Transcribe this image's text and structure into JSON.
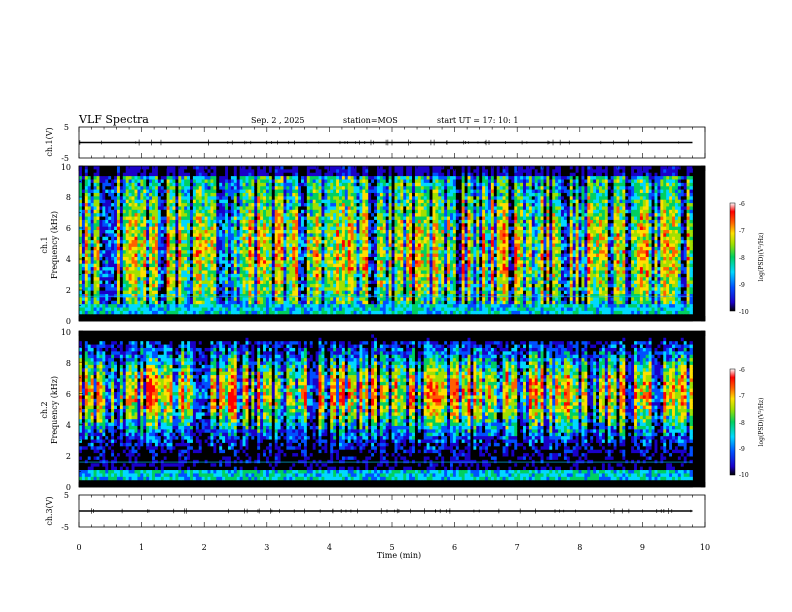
{
  "header": {
    "title": "VLF Spectra",
    "date": "Sep. 2 , 2025",
    "station": "station=MOS",
    "start": "start UT =  17: 10: 1"
  },
  "chart_data": [
    {
      "type": "line",
      "panel": "ch1-waveform",
      "ylabel": "ch.1(V)",
      "ylim": [
        -5,
        5
      ],
      "yticks": [
        "5",
        "-5"
      ],
      "xlim": [
        0,
        10
      ],
      "baseline_value": 0,
      "data_extent_min": 9.8
    },
    {
      "type": "heatmap",
      "panel": "ch1-spectrogram",
      "ylabel_top": "ch.1",
      "ylabel": "Frequency (kHz)",
      "ylim": [
        0,
        10
      ],
      "yticks": [
        "0",
        "2",
        "4",
        "6",
        "8",
        "10"
      ],
      "xlim": [
        0,
        10
      ],
      "data_extent_min": 9.8,
      "colorbar": {
        "label": "log(PSD)(V²/Hz)",
        "range": [
          -10,
          -6
        ],
        "ticks": [
          "-6",
          "-7",
          "-8",
          "-9",
          "-10"
        ]
      }
    },
    {
      "type": "heatmap",
      "panel": "ch2-spectrogram",
      "ylabel_top": "ch.2",
      "ylabel": "Frequency (kHz)",
      "ylim": [
        0,
        10
      ],
      "yticks": [
        "0",
        "2",
        "4",
        "6",
        "8",
        "10"
      ],
      "xlim": [
        0,
        10
      ],
      "data_extent_min": 9.8,
      "colorbar": {
        "label": "log(PSD)(V²/Hz)",
        "range": [
          -10,
          -6
        ],
        "ticks": [
          "-6",
          "-7",
          "-8",
          "-9",
          "-10"
        ]
      }
    },
    {
      "type": "line",
      "panel": "ch3-waveform",
      "ylabel": "ch.3(V)",
      "ylim": [
        -5,
        5
      ],
      "yticks": [
        "5",
        "-5"
      ],
      "xlim": [
        0,
        10
      ],
      "baseline_value": 0,
      "data_extent_min": 9.8,
      "xlabel": "Time (min)",
      "xticks": [
        "0",
        "1",
        "2",
        "3",
        "4",
        "5",
        "6",
        "7",
        "8",
        "9",
        "10"
      ]
    }
  ]
}
